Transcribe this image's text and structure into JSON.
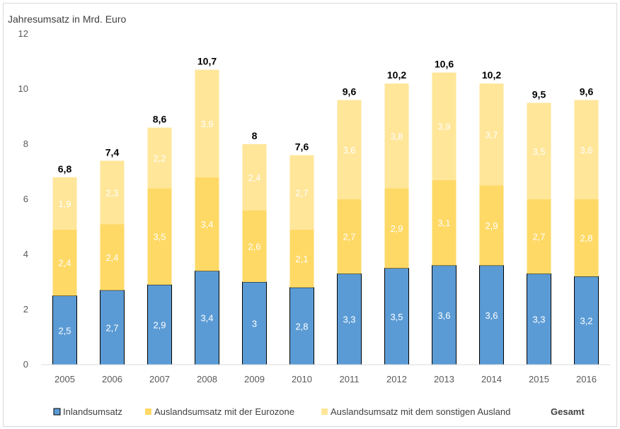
{
  "chart_data": {
    "type": "bar",
    "stacked": true,
    "ylabel": "Jahresumsatz in Mrd. Euro",
    "ylim": [
      0,
      12
    ],
    "yticks": [
      0,
      2,
      4,
      6,
      8,
      10,
      12
    ],
    "categories": [
      "2005",
      "2006",
      "2007",
      "2008",
      "2009",
      "2010",
      "2011",
      "2012",
      "2013",
      "2014",
      "2015",
      "2016"
    ],
    "series": [
      {
        "name": "Inlandsumsatz",
        "color": "#5b9bd5",
        "labels": [
          "2,5",
          "2,7",
          "2,9",
          "3,4",
          "3",
          "2,8",
          "3,3",
          "3,5",
          "3,6",
          "3,6",
          "3,3",
          "3,2"
        ],
        "values": [
          2.5,
          2.7,
          2.9,
          3.4,
          3.0,
          2.8,
          3.3,
          3.5,
          3.6,
          3.6,
          3.3,
          3.2
        ]
      },
      {
        "name": "Auslandsumsatz mit der Eurozone",
        "color": "#ffd966",
        "labels": [
          "2,4",
          "2,4",
          "3,5",
          "3,4",
          "2,6",
          "2,1",
          "2,7",
          "2,9",
          "3,1",
          "2,9",
          "2,7",
          "2,8"
        ],
        "values": [
          2.4,
          2.4,
          3.5,
          3.4,
          2.6,
          2.1,
          2.7,
          2.9,
          3.1,
          2.9,
          2.7,
          2.8
        ]
      },
      {
        "name": "Auslandsumsatz mit dem sonstigen Ausland",
        "color": "#ffe699",
        "labels": [
          "1,9",
          "2,3",
          "2,2",
          "3,9",
          "2,4",
          "2,7",
          "3,6",
          "3,8",
          "3,9",
          "3,7",
          "3,5",
          "3,6"
        ],
        "values": [
          1.9,
          2.3,
          2.2,
          3.9,
          2.4,
          2.7,
          3.6,
          3.8,
          3.9,
          3.7,
          3.5,
          3.6
        ]
      }
    ],
    "totals": {
      "name": "Gesamt",
      "labels": [
        "6,8",
        "7,4",
        "8,6",
        "10,7",
        "8",
        "7,6",
        "9,6",
        "10,2",
        "10,6",
        "10,2",
        "9,5",
        "9,6"
      ],
      "values": [
        6.8,
        7.4,
        8.6,
        10.7,
        8.0,
        7.6,
        9.6,
        10.2,
        10.6,
        10.2,
        9.5,
        9.6
      ]
    },
    "legend": "bottom",
    "grid": false
  }
}
